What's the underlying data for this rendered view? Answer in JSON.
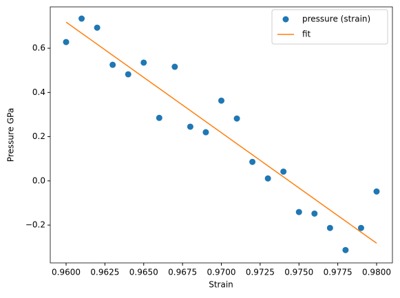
{
  "chart_data": {
    "type": "scatter",
    "xlabel": "Strain",
    "ylabel": "Pressure GPa",
    "x": [
      0.96,
      0.961,
      0.962,
      0.963,
      0.964,
      0.965,
      0.966,
      0.967,
      0.968,
      0.969,
      0.97,
      0.971,
      0.972,
      0.973,
      0.974,
      0.975,
      0.976,
      0.977,
      0.978,
      0.979,
      0.98
    ],
    "series": [
      {
        "name": "pressure (strain)",
        "type": "scatter",
        "color": "#1f77b4",
        "values": [
          0.628,
          0.734,
          0.693,
          0.525,
          0.482,
          0.535,
          0.285,
          0.516,
          0.245,
          0.22,
          0.363,
          0.282,
          0.086,
          0.011,
          0.042,
          -0.141,
          -0.148,
          -0.213,
          -0.313,
          -0.213,
          -0.048
        ]
      },
      {
        "name": "fit",
        "type": "line",
        "color": "#ff7f0e",
        "values": [
          0.718,
          0.668,
          0.618,
          0.568,
          0.518,
          0.468,
          0.418,
          0.368,
          0.318,
          0.268,
          0.218,
          0.168,
          0.118,
          0.068,
          0.018,
          -0.032,
          -0.082,
          -0.132,
          -0.182,
          -0.232,
          -0.282
        ]
      }
    ],
    "xlim": [
      0.95898,
      0.98102
    ],
    "ylim": [
      -0.371,
      0.787
    ],
    "xticks": [
      {
        "value": 0.96,
        "label": "0.9600"
      },
      {
        "value": 0.9625,
        "label": "0.9625"
      },
      {
        "value": 0.965,
        "label": "0.9650"
      },
      {
        "value": 0.9675,
        "label": "0.9675"
      },
      {
        "value": 0.97,
        "label": "0.9700"
      },
      {
        "value": 0.9725,
        "label": "0.9725"
      },
      {
        "value": 0.975,
        "label": "0.9750"
      },
      {
        "value": 0.9775,
        "label": "0.9775"
      },
      {
        "value": 0.98,
        "label": "0.9800"
      }
    ],
    "yticks": [
      {
        "value": -0.2,
        "label": "−0.2"
      },
      {
        "value": 0,
        "label": "0.0"
      },
      0.2,
      0.4,
      0.6
    ],
    "legend": "upper right",
    "grid": false
  }
}
